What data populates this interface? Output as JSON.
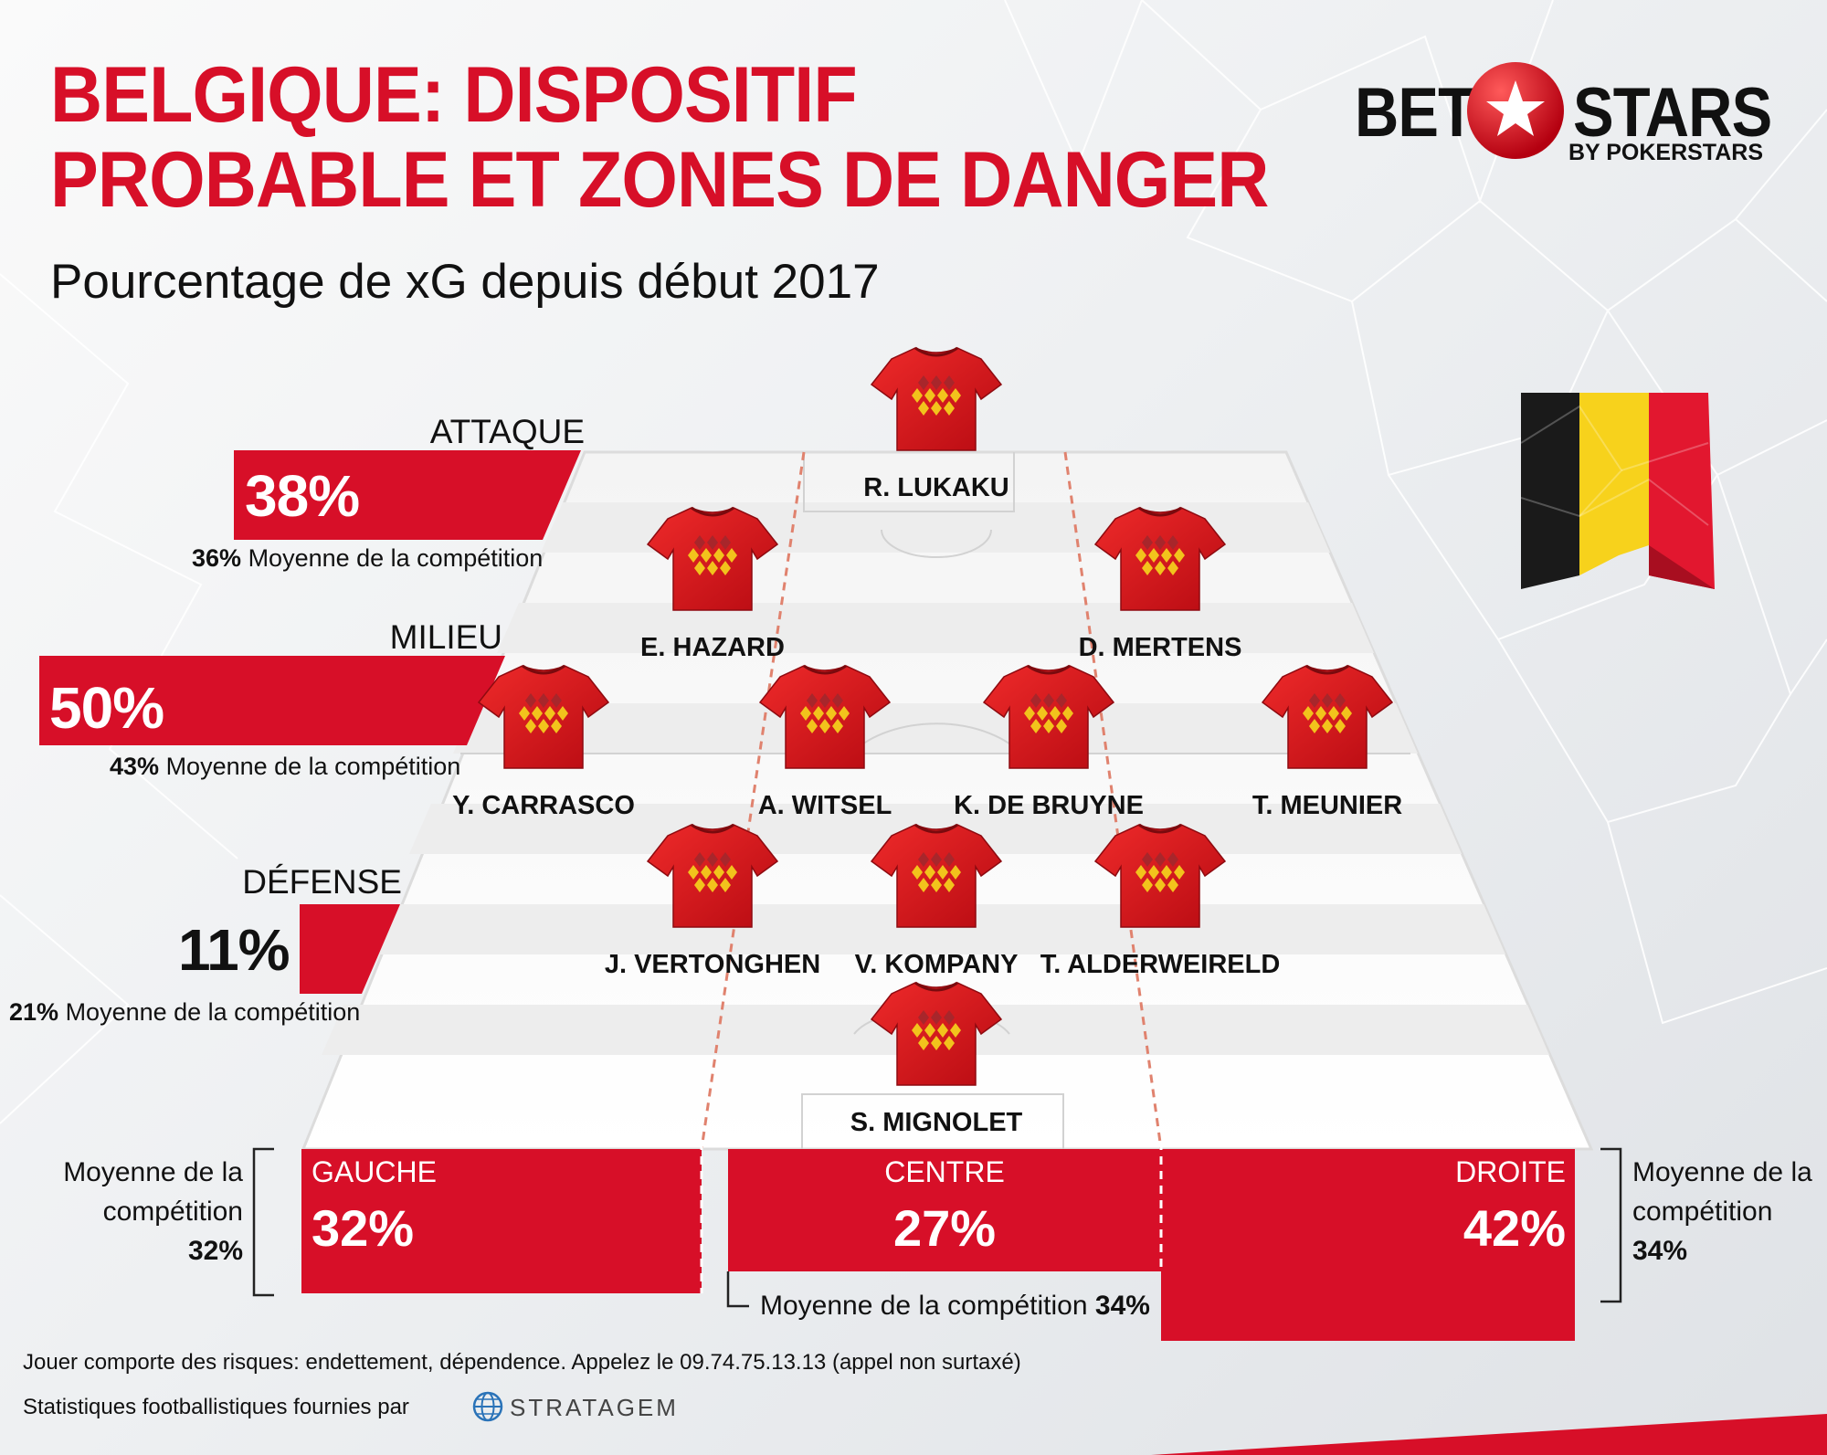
{
  "title_line1": "BELGIQUE: DISPOSITIF",
  "title_line2": "PROBABLE ET ZONES DE DANGER",
  "subtitle": "Pourcentage de xG depuis début 2017",
  "logo": {
    "bet": "BET",
    "stars": "STARS",
    "by": "BY POKERSTARS"
  },
  "colors": {
    "red": "#d70f28",
    "flag_black": "#1a1a1a",
    "flag_yellow": "#f7d21c",
    "flag_red": "#e2172f"
  },
  "zones": {
    "attack": {
      "label": "ATTAQUE",
      "value": "38%",
      "avg_value": "36%",
      "avg_text": "Moyenne de la compétition",
      "share": 38
    },
    "midfield": {
      "label": "MILIEU",
      "value": "50%",
      "avg_value": "43%",
      "avg_text": "Moyenne de la compétition",
      "share": 50
    },
    "defense": {
      "label": "DÉFENSE",
      "value": "11%",
      "avg_value": "21%",
      "avg_text": "Moyenne de la compétition",
      "share": 11
    }
  },
  "players": {
    "lukaku": "R. LUKAKU",
    "hazard": "E. HAZARD",
    "mertens": "D. MERTENS",
    "carrasco": "Y. CARRASCO",
    "witsel": "A. WITSEL",
    "debruyne": "K. DE BRUYNE",
    "meunier": "T. MEUNIER",
    "vertonghen": "J. VERTONGHEN",
    "kompany": "V. KOMPANY",
    "alderweireld": "T. ALDERWEIRELD",
    "mignolet": "S. MIGNOLET"
  },
  "channels": {
    "left": {
      "label": "GAUCHE",
      "value": "32%",
      "share": 32
    },
    "centre": {
      "label": "CENTRE",
      "value": "27%",
      "share": 27
    },
    "right": {
      "label": "DROITE",
      "value": "42%",
      "share": 42
    }
  },
  "channel_avgs": {
    "left": {
      "line1": "Moyenne de la",
      "line2": "compétition",
      "value": "32%"
    },
    "centre": {
      "text": "Moyenne de la compétition",
      "value": "34%"
    },
    "right": {
      "line1": "Moyenne de la",
      "line2": "compétition",
      "value": "34%"
    }
  },
  "footer": {
    "disclaimer": "Jouer comporte des risques: endettement, dépendence. Appelez le 09.74.75.13.13 (appel non surtaxé)",
    "credit": "Statistiques footballistiques fournies par",
    "credit_brand": "STRATAGEM"
  }
}
